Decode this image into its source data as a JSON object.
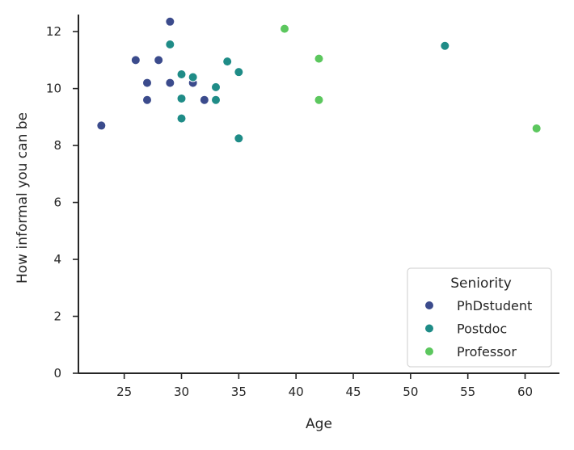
{
  "chart_data": {
    "type": "scatter",
    "title": "",
    "xlabel": "Age",
    "ylabel": "How informal you can be",
    "xlim": [
      21,
      63
    ],
    "ylim": [
      0,
      12.6
    ],
    "x_ticks": [
      25,
      30,
      35,
      40,
      45,
      50,
      55,
      60
    ],
    "y_ticks": [
      0,
      2,
      4,
      6,
      8,
      10,
      12
    ],
    "grid": false,
    "legend": {
      "title": "Seniority",
      "placement": "bottom-right"
    },
    "series": [
      {
        "name": "PhDstudent",
        "color": "#3b4b8c",
        "points": [
          {
            "x": 23,
            "y": 8.7
          },
          {
            "x": 26,
            "y": 11.0
          },
          {
            "x": 27,
            "y": 10.2
          },
          {
            "x": 27,
            "y": 9.6
          },
          {
            "x": 28,
            "y": 11.0
          },
          {
            "x": 29,
            "y": 12.35
          },
          {
            "x": 29,
            "y": 10.2
          },
          {
            "x": 31,
            "y": 10.2
          },
          {
            "x": 32,
            "y": 9.6
          }
        ]
      },
      {
        "name": "Postdoc",
        "color": "#1f8c87",
        "points": [
          {
            "x": 29,
            "y": 11.55
          },
          {
            "x": 30,
            "y": 10.5
          },
          {
            "x": 30,
            "y": 9.65
          },
          {
            "x": 30,
            "y": 8.95
          },
          {
            "x": 31,
            "y": 10.4
          },
          {
            "x": 33,
            "y": 10.05
          },
          {
            "x": 33,
            "y": 9.6
          },
          {
            "x": 34,
            "y": 10.95
          },
          {
            "x": 35,
            "y": 10.58
          },
          {
            "x": 35,
            "y": 8.25
          },
          {
            "x": 53,
            "y": 11.5
          }
        ]
      },
      {
        "name": "Professor",
        "color": "#5cc75e",
        "points": [
          {
            "x": 39,
            "y": 12.1
          },
          {
            "x": 42,
            "y": 11.05
          },
          {
            "x": 42,
            "y": 9.6
          },
          {
            "x": 61,
            "y": 8.6
          }
        ]
      }
    ]
  }
}
